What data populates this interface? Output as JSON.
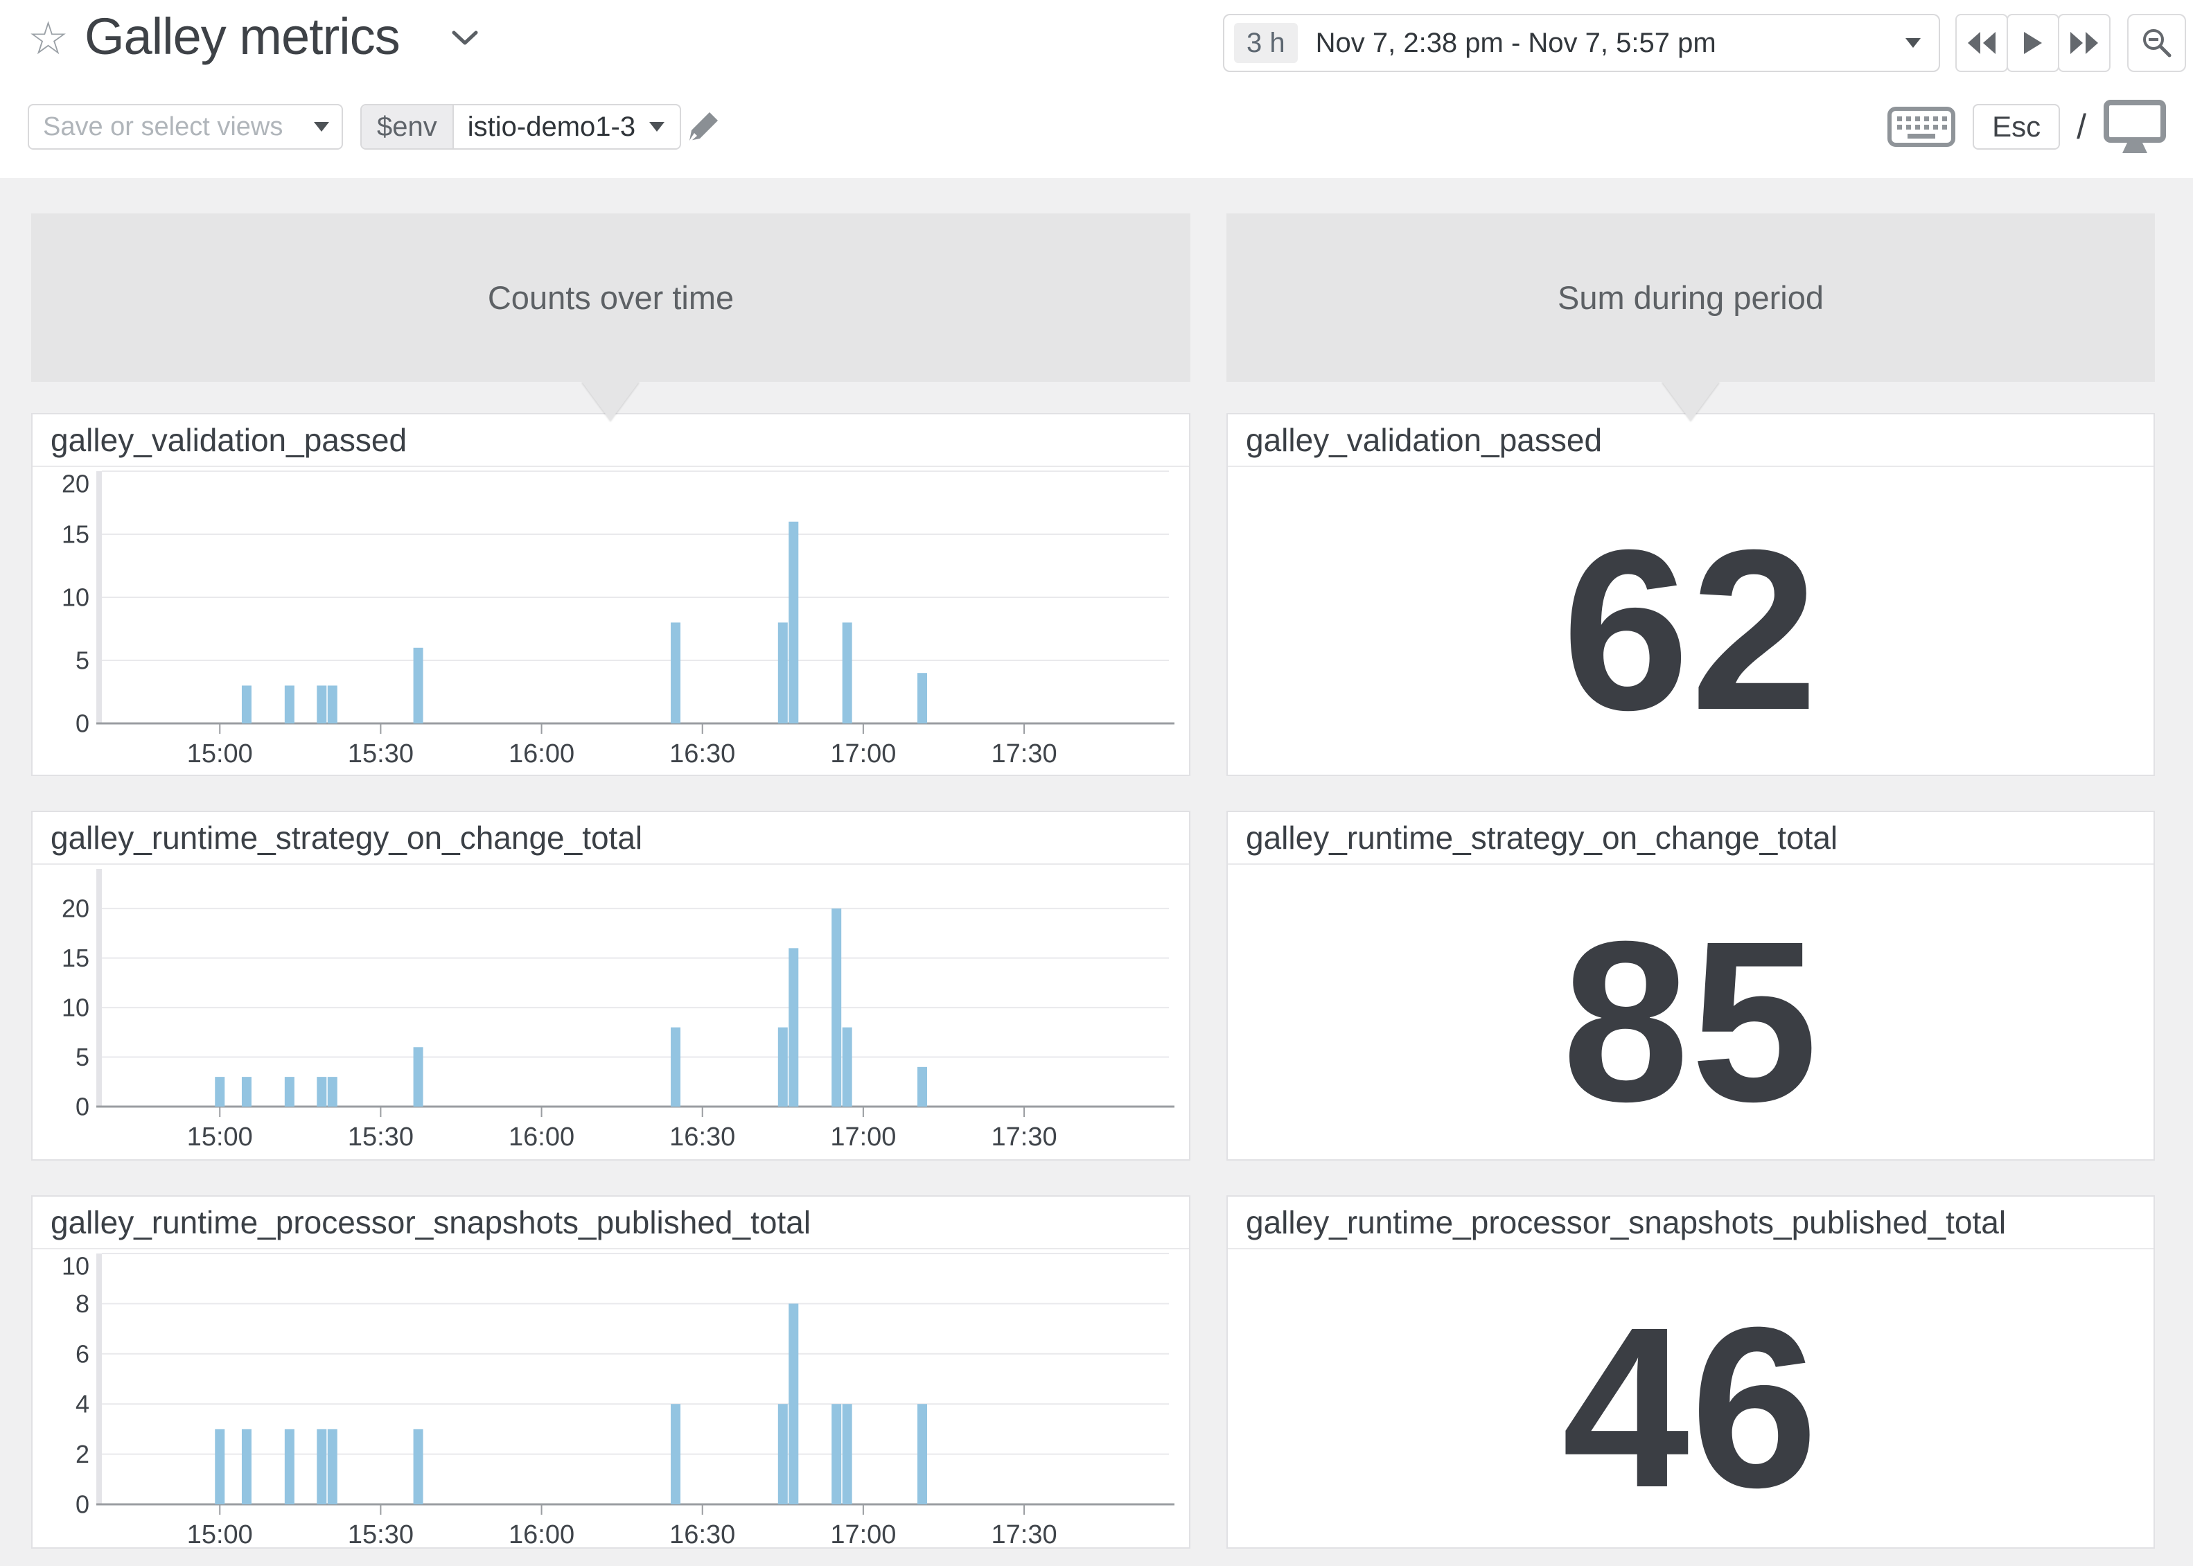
{
  "app": {
    "title": "Galley metrics"
  },
  "header": {
    "star_icon": "☆",
    "time_selector": {
      "duration_badge": "3 h",
      "range": "Nov 7, 2:38 pm - Nov 7, 5:57 pm"
    },
    "toolbar": {
      "views_placeholder": "Save or select views",
      "env_label": "$env",
      "env_value": "istio-demo1-3"
    },
    "shortcut_hints": {
      "esc_label": "Esc",
      "slash_label": "/"
    }
  },
  "columns": {
    "left_header": "Counts over time",
    "right_header": "Sum during period"
  },
  "colors": {
    "bar": "#93c4e1",
    "big_number": "#3b3e44",
    "header_box": "#e5e5e6"
  },
  "x_axis": {
    "start_label": "14:38",
    "end_label": "17:57",
    "total_minutes": 199
  },
  "chart_data": [
    {
      "type": "bar",
      "title": "galley_validation_passed",
      "sum": 62,
      "ylim": [
        0,
        20
      ],
      "yticks": [
        0,
        5,
        10,
        15,
        20
      ],
      "xticks": [
        {
          "min": 22,
          "label": "15:00"
        },
        {
          "min": 52,
          "label": "15:30"
        },
        {
          "min": 82,
          "label": "16:00"
        },
        {
          "min": 112,
          "label": "16:30"
        },
        {
          "min": 142,
          "label": "17:00"
        },
        {
          "min": 172,
          "label": "17:30"
        }
      ],
      "bars": [
        {
          "time": "15:05",
          "min": 27,
          "value": 3
        },
        {
          "time": "15:13",
          "min": 35,
          "value": 3
        },
        {
          "time": "15:19",
          "min": 41,
          "value": 3
        },
        {
          "time": "15:21",
          "min": 43,
          "value": 3
        },
        {
          "time": "15:37",
          "min": 59,
          "value": 6
        },
        {
          "time": "16:25",
          "min": 107,
          "value": 8
        },
        {
          "time": "16:45",
          "min": 127,
          "value": 8
        },
        {
          "time": "16:47",
          "min": 129,
          "value": 16
        },
        {
          "time": "16:57",
          "min": 139,
          "value": 8
        },
        {
          "time": "17:11",
          "min": 153,
          "value": 4
        }
      ]
    },
    {
      "type": "bar",
      "title": "galley_runtime_strategy_on_change_total",
      "sum": 85,
      "ylim": [
        0,
        24
      ],
      "yticks": [
        0,
        5,
        10,
        15,
        20
      ],
      "xticks": [
        {
          "min": 22,
          "label": "15:00"
        },
        {
          "min": 52,
          "label": "15:30"
        },
        {
          "min": 82,
          "label": "16:00"
        },
        {
          "min": 112,
          "label": "16:30"
        },
        {
          "min": 142,
          "label": "17:00"
        },
        {
          "min": 172,
          "label": "17:30"
        }
      ],
      "bars": [
        {
          "time": "15:00",
          "min": 22,
          "value": 3
        },
        {
          "time": "15:05",
          "min": 27,
          "value": 3
        },
        {
          "time": "15:13",
          "min": 35,
          "value": 3
        },
        {
          "time": "15:19",
          "min": 41,
          "value": 3
        },
        {
          "time": "15:21",
          "min": 43,
          "value": 3
        },
        {
          "time": "15:37",
          "min": 59,
          "value": 6
        },
        {
          "time": "16:25",
          "min": 107,
          "value": 8
        },
        {
          "time": "16:45",
          "min": 127,
          "value": 8
        },
        {
          "time": "16:47",
          "min": 129,
          "value": 16
        },
        {
          "time": "16:55",
          "min": 137,
          "value": 20
        },
        {
          "time": "16:57",
          "min": 139,
          "value": 8
        },
        {
          "time": "17:11",
          "min": 153,
          "value": 4
        }
      ]
    },
    {
      "type": "bar",
      "title": "galley_runtime_processor_snapshots_published_total",
      "sum": 46,
      "ylim": [
        0,
        10
      ],
      "yticks": [
        0,
        2,
        4,
        6,
        8,
        10
      ],
      "xticks": [
        {
          "min": 22,
          "label": "15:00"
        },
        {
          "min": 52,
          "label": "15:30"
        },
        {
          "min": 82,
          "label": "16:00"
        },
        {
          "min": 112,
          "label": "16:30"
        },
        {
          "min": 142,
          "label": "17:00"
        },
        {
          "min": 172,
          "label": "17:30"
        }
      ],
      "bars": [
        {
          "time": "15:00",
          "min": 22,
          "value": 3
        },
        {
          "time": "15:05",
          "min": 27,
          "value": 3
        },
        {
          "time": "15:13",
          "min": 35,
          "value": 3
        },
        {
          "time": "15:19",
          "min": 41,
          "value": 3
        },
        {
          "time": "15:21",
          "min": 43,
          "value": 3
        },
        {
          "time": "15:37",
          "min": 59,
          "value": 3
        },
        {
          "time": "16:25",
          "min": 107,
          "value": 4
        },
        {
          "time": "16:45",
          "min": 127,
          "value": 4
        },
        {
          "time": "16:47",
          "min": 129,
          "value": 8
        },
        {
          "time": "16:55",
          "min": 137,
          "value": 4
        },
        {
          "time": "16:57",
          "min": 139,
          "value": 4
        },
        {
          "time": "17:11",
          "min": 153,
          "value": 4
        }
      ]
    }
  ]
}
